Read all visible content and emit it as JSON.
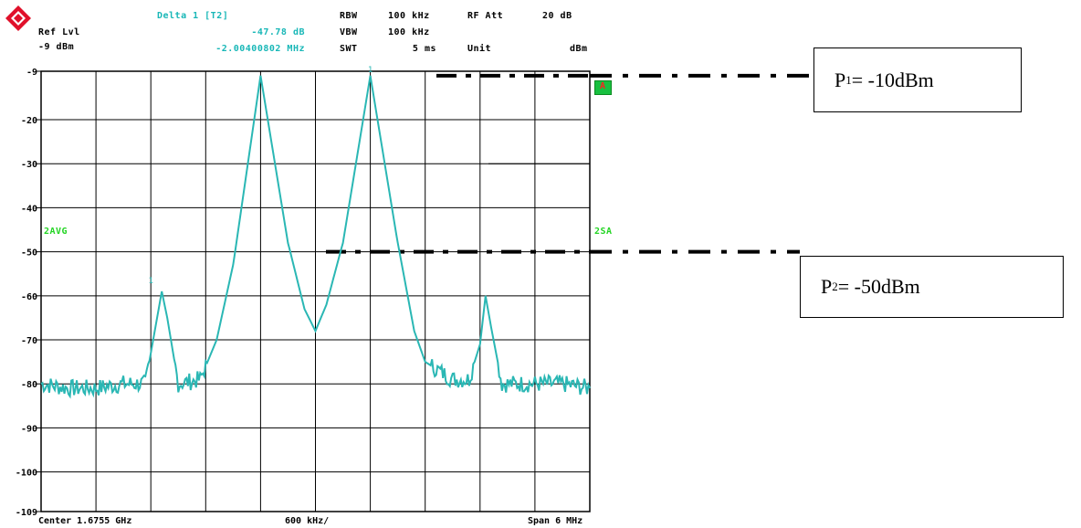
{
  "header": {
    "ref_lvl_label": "Ref Lvl",
    "ref_lvl_value": "-9 dBm",
    "marker_title": "Delta 1 [T2]",
    "marker_level": "-47.78 dB",
    "marker_freq": "-2.00400802 MHz",
    "rbw_label": "RBW",
    "rbw_value": "100 kHz",
    "vbw_label": "VBW",
    "vbw_value": "100 kHz",
    "swt_label": "SWT",
    "swt_value": "5 ms",
    "rf_att_label": "RF Att",
    "rf_att_value": "20 dB",
    "unit_label": "Unit",
    "unit_value": "dBm"
  },
  "side_labels": {
    "left_trace": "2AVG",
    "right_trace": "2SA",
    "marker_a": "A"
  },
  "footer": {
    "center": "Center 1.6755 GHz",
    "div": "600 kHz/",
    "span": "Span 6 MHz"
  },
  "annotations": {
    "p1_main": "P",
    "p1_sub": "1",
    "p1_value": "= -10dBm",
    "p2_main": "P",
    "p2_sub": "2",
    "p2_value": "= -50dBm"
  },
  "colors": {
    "trace": "#2ab7b4",
    "grid": "#000000",
    "marker_box": "#18c040",
    "logo": "#e0102a"
  },
  "chart_data": {
    "type": "line",
    "title": "",
    "xlabel": "",
    "ylabel": "",
    "ylim": [
      -109,
      -9
    ],
    "xlim": [
      0,
      10
    ],
    "y_ticks": [
      "-9",
      "-20",
      "-30",
      "-40",
      "-50",
      "-60",
      "-70",
      "-80",
      "-90",
      "-100",
      "-109"
    ],
    "y_tick_values": [
      -9,
      -20,
      -30,
      -40,
      -50,
      -60,
      -70,
      -80,
      -90,
      -100,
      -109
    ],
    "grid": true,
    "series": [
      {
        "x": [
          0,
          0.5,
          1,
          1.5,
          1.9,
          2.1,
          2.2,
          2.3,
          2.5,
          2.9,
          3.2,
          3.5,
          4,
          4.5,
          4.8,
          5.0,
          5.2,
          5.5,
          6,
          6.5,
          6.8,
          7.0,
          7.5,
          7.8,
          8.0,
          8.1,
          8.2,
          8.4,
          8.6,
          9.0,
          9.5,
          10
        ],
        "y": [
          -80,
          -81,
          -81,
          -80,
          -80,
          -66,
          -59,
          -65,
          -80,
          -79,
          -70,
          -53,
          -10,
          -48,
          -63,
          -68,
          -62,
          -48,
          -10,
          -48,
          -68,
          -75,
          -79,
          -79,
          -71,
          -60,
          -67,
          -80,
          -80,
          -80,
          -80,
          -81
        ]
      }
    ],
    "markers": [
      {
        "x": 6.0,
        "y": -10,
        "label": "1"
      },
      {
        "x": 2.0,
        "y": -58,
        "label": "1"
      }
    ]
  }
}
